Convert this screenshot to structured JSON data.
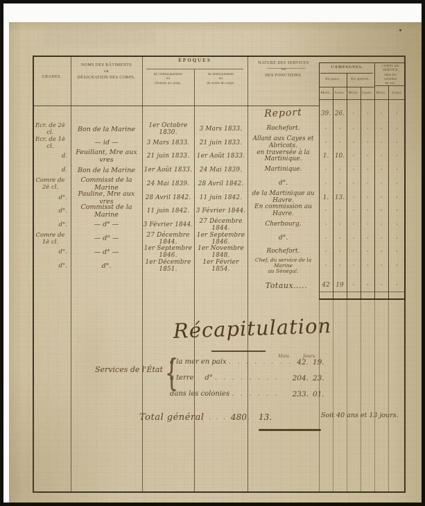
{
  "document": {
    "colors": {
      "paper": "#cec09f",
      "table_ink": "#43321c",
      "handwriting_ink": "#5a4226"
    },
    "header": {
      "grades_label": "GRADES.",
      "designation_lines": [
        "NOMS DES BÂTIMENTS",
        "ou",
        "DÉSIGNATION DES CORPS."
      ],
      "epoques_title": "ÉPOQUES",
      "embark_lines": [
        "de l'embarquement",
        "ou",
        "d'entrée au corps."
      ],
      "debark_lines": [
        "du débarquement",
        "ou",
        "de sortie du corps."
      ],
      "nature_lines": [
        "NATURE DES SERVICES",
        "ou",
        "DES FONCTIONS."
      ],
      "campagnes_title": "CAMPAGNES.",
      "sub_peace": "En paix.",
      "sub_war": "En guerre.",
      "extra_lines": [
        "TEMPS DE",
        "SERVICE",
        "dans les",
        "colonies",
        "en sus."
      ],
      "mois": "Mois.",
      "jours": "Jours."
    },
    "report": {
      "label": "Report",
      "p_mois": "39.",
      "p_jours": "26.",
      "w_mois": "·",
      "w_jours": "·",
      "e_mois": "·",
      "e_jours": "·"
    },
    "rows": [
      {
        "grade": "Ecr. de 2è cl.",
        "designation": "Bon de la Marine",
        "date_in": "1er Octobre 1830.",
        "date_out": "3 Mars 1833.",
        "nature": "Rochefort.",
        "p_mois": "·",
        "p_jours": "·",
        "w_mois": "·",
        "w_jours": "·",
        "e_mois": "·",
        "e_jours": "·"
      },
      {
        "grade": "Ecr. de 1è cl.",
        "designation": "— id —",
        "date_in": "3 Mars 1833.",
        "date_out": "21 juin 1833.",
        "nature": "Allant aux Cayes et Abricots.",
        "p_mois": "·",
        "p_jours": "·",
        "w_mois": "·",
        "w_jours": "·",
        "e_mois": "·",
        "e_jours": "·"
      },
      {
        "grade": "d.",
        "designation": "Feuillant, Mre aux vres",
        "date_in": "21 juin 1833.",
        "date_out": "1er Août 1833.",
        "nature": "en traversée à la Martinique.",
        "p_mois": "1.",
        "p_jours": "10.",
        "w_mois": "·",
        "w_jours": "·",
        "e_mois": "·",
        "e_jours": "·"
      },
      {
        "grade": "d.",
        "designation": "Bon de la Marine",
        "date_in": "1er Août 1833.",
        "date_out": "24 Mai 1839.",
        "nature": "Martinique.",
        "p_mois": "·",
        "p_jours": "·",
        "w_mois": "·",
        "w_jours": "·",
        "e_mois": "·",
        "e_jours": "·"
      },
      {
        "grade": "Comre de 2è cl.",
        "designation": "Commisst de la Marine",
        "date_in": "24 Mai 1839.",
        "date_out": "28 Avril 1842.",
        "nature": "d°.",
        "p_mois": "·",
        "p_jours": "·",
        "w_mois": "·",
        "w_jours": "·",
        "e_mois": "·",
        "e_jours": "·"
      },
      {
        "grade": "d°.",
        "designation": "Pauline, Mre aux vres",
        "date_in": "28 Avril 1842.",
        "date_out": "11 juin 1842.",
        "nature": "de la Martinique au Havre.",
        "p_mois": "1.",
        "p_jours": "13.",
        "w_mois": "·",
        "w_jours": "·",
        "e_mois": "·",
        "e_jours": "·"
      },
      {
        "grade": "d°.",
        "designation": "Commisst de la Marine",
        "date_in": "11 juin 1842.",
        "date_out": "3 Février 1844.",
        "nature": "En commission au Havre.",
        "p_mois": "·",
        "p_jours": "·",
        "w_mois": "·",
        "w_jours": "·",
        "e_mois": "·",
        "e_jours": "·"
      },
      {
        "grade": "d°.",
        "designation": "— d° —",
        "date_in": "3 Février 1844.",
        "date_out": "27 Décembre 1844.",
        "nature": "Cherbourg.",
        "p_mois": "·",
        "p_jours": "·",
        "w_mois": "·",
        "w_jours": "·",
        "e_mois": "·",
        "e_jours": "·"
      },
      {
        "grade": "Comre de 1è cl.",
        "designation": "— d° —",
        "date_in": "27 Décembre 1844.",
        "date_out": "1er Septembre 1846.",
        "nature": "d°.",
        "p_mois": "·",
        "p_jours": "·",
        "w_mois": "·",
        "w_jours": "·",
        "e_mois": "·",
        "e_jours": "·"
      },
      {
        "grade": "d°.",
        "designation": "— d° —",
        "date_in": "1er Septembre 1846.",
        "date_out": "1er Novembre 1848.",
        "nature": "Rochefort.",
        "p_mois": "·",
        "p_jours": "·",
        "w_mois": "·",
        "w_jours": "·",
        "e_mois": "·",
        "e_jours": "·"
      },
      {
        "grade": "d°.",
        "designation": "d°.",
        "date_in": "1er Décembre 1851.",
        "date_out": "1er Février 1854.",
        "nature": "Chef, du service de la Marine",
        "nature2": "au Sénégal.",
        "p_mois": "·",
        "p_jours": "·",
        "w_mois": "·",
        "w_jours": "·",
        "e_mois": "·",
        "e_jours": "·"
      }
    ],
    "totaux": {
      "label": "Totaux.....",
      "p_mois": "42",
      "p_jours": "19",
      "w_mois": "·",
      "w_jours": "·",
      "e_mois": "·",
      "e_jours": "·"
    },
    "recap": {
      "title": "Récapitulation",
      "mois_header": "Mois.",
      "jours_header": "Jours.",
      "group_label": "Services de l'État",
      "brace": "{",
      "lines": [
        {
          "label": "à la mer en paix",
          "dots": ". . . . . . . .",
          "mois": "42.",
          "jours": "19."
        },
        {
          "label": "à terre     d°",
          "dots": ". . . . . . . .",
          "mois": "204.",
          "jours": "23."
        },
        {
          "label": "dans les colonies",
          "dots": ". . . . . .",
          "mois": "233.",
          "jours": "01."
        }
      ],
      "total_label": "Total général",
      "total_dots": ". . . .",
      "total_mois": "480.",
      "total_jours": "13.",
      "duration_note": "Soit 40 ans et 13 jours."
    }
  }
}
